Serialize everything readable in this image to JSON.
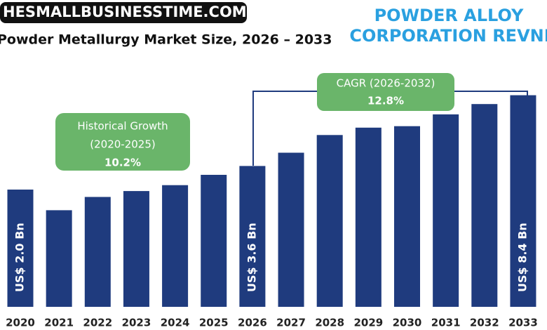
{
  "chart_data": {
    "type": "bar",
    "header": "HESMALLBUSINESSTIME.COM",
    "title": "Powder Metallurgy Market Size, 2026 – 2033",
    "side_title": [
      "POWDER ALLOY",
      "CORPORATION REVNEU"
    ],
    "categories": [
      "2020",
      "2021",
      "2022",
      "2023",
      "2024",
      "2025",
      "2026",
      "2027",
      "2028",
      "2029",
      "2030",
      "2031",
      "2032",
      "2033"
    ],
    "values": [
      2.0,
      0.6,
      1.5,
      1.9,
      2.3,
      3.0,
      3.6,
      4.5,
      5.7,
      6.2,
      6.3,
      7.1,
      7.8,
      8.4
    ],
    "value_labels": [
      "US$ 2.0 Bn",
      null,
      null,
      null,
      null,
      null,
      "US$ 3.6 Bn",
      null,
      null,
      null,
      null,
      null,
      null,
      "US$ 8.4 Bn"
    ],
    "color": "#1f3b7e",
    "annotations": [
      {
        "lines": [
          "Historical Growth",
          "(2020-2025)",
          "10.2%"
        ]
      },
      {
        "lines": [
          "CAGR (2026-2032)",
          "12.8%"
        ]
      }
    ]
  }
}
